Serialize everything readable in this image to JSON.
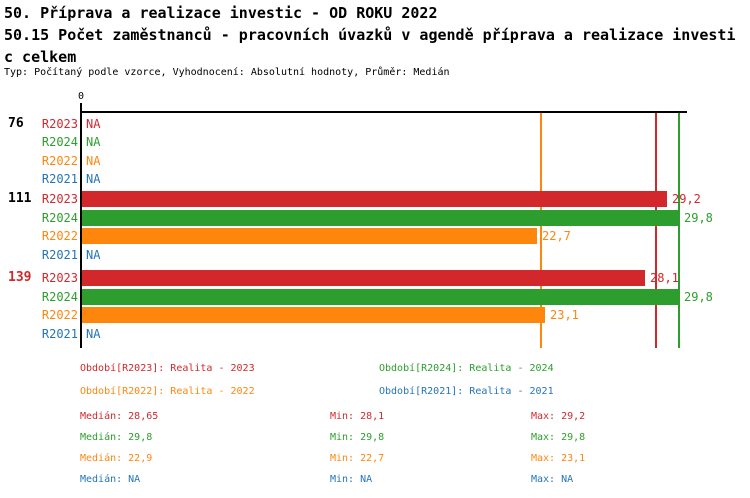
{
  "colors": {
    "red": "#d2282c",
    "green": "#2d9e2d",
    "orange": "#ff860d",
    "blue": "#2475b8",
    "axis": "#000000"
  },
  "chart_data": {
    "type": "bar",
    "orientation": "horizontal",
    "title_lines": [
      "50. Příprava a realizace investic - OD ROKU 2022",
      "50.15 Počet zaměstnanců - pracovních úvazků v agendě příprava a realizace investi",
      "c celkem"
    ],
    "note": "Typ: Počítaný podle vzorce, Vyhodnocení: Absolutní hodnoty, Průměr: Medián",
    "x_axis": {
      "zero_label": "0",
      "min": 0,
      "max_visible": 30,
      "gridlines": false
    },
    "na_label": "NA",
    "series_order": [
      "R2023",
      "R2024",
      "R2022",
      "R2021"
    ],
    "series_colors": {
      "R2023": "#d2282c",
      "R2024": "#2d9e2d",
      "R2022": "#ff860d",
      "R2021": "#2475b8"
    },
    "groups": [
      {
        "label": "76",
        "label_color": "#000000",
        "rows": [
          {
            "series": "R2023",
            "value": null,
            "display": "NA"
          },
          {
            "series": "R2024",
            "value": null,
            "display": "NA"
          },
          {
            "series": "R2022",
            "value": null,
            "display": "NA"
          },
          {
            "series": "R2021",
            "value": null,
            "display": "NA"
          }
        ]
      },
      {
        "label": "111",
        "label_color": "#000000",
        "rows": [
          {
            "series": "R2023",
            "value": 29.2,
            "display": "29,2"
          },
          {
            "series": "R2024",
            "value": 29.8,
            "display": "29,8"
          },
          {
            "series": "R2022",
            "value": 22.7,
            "display": "22,7"
          },
          {
            "series": "R2021",
            "value": null,
            "display": "NA"
          }
        ]
      },
      {
        "label": "139",
        "label_color": "#d2282c",
        "rows": [
          {
            "series": "R2023",
            "value": 28.1,
            "display": "28,1"
          },
          {
            "series": "R2024",
            "value": 29.8,
            "display": "29,8"
          },
          {
            "series": "R2022",
            "value": 23.1,
            "display": "23,1"
          },
          {
            "series": "R2021",
            "value": null,
            "display": "NA"
          }
        ]
      }
    ],
    "reference_lines": [
      {
        "name": "median-r2022",
        "value": 22.9,
        "color": "#ff860d"
      },
      {
        "name": "median-r2023",
        "value": 28.65,
        "color": "#d2282c"
      },
      {
        "name": "median-r2024",
        "value": 29.8,
        "color": "#2d9e2d"
      }
    ],
    "legend": [
      {
        "text": "Období[R2023]: Realita - 2023",
        "color": "#d2282c"
      },
      {
        "text": "Období[R2024]: Realita - 2024",
        "color": "#2d9e2d"
      },
      {
        "text": "Období[R2022]: Realita - 2022",
        "color": "#ff860d"
      },
      {
        "text": "Období[R2021]: Realita - 2021",
        "color": "#2475b8"
      }
    ],
    "stats": [
      {
        "color": "#d2282c",
        "median": "Medián: 28,65",
        "min": "Min: 28,1",
        "max": "Max: 29,2"
      },
      {
        "color": "#2d9e2d",
        "median": "Medián: 29,8",
        "min": "Min: 29,8",
        "max": "Max: 29,8"
      },
      {
        "color": "#ff860d",
        "median": "Medián: 22,9",
        "min": "Min: 22,7",
        "max": "Max: 23,1"
      },
      {
        "color": "#2475b8",
        "median": "Medián: NA",
        "min": "Min: NA",
        "max": "Max: NA"
      }
    ]
  }
}
